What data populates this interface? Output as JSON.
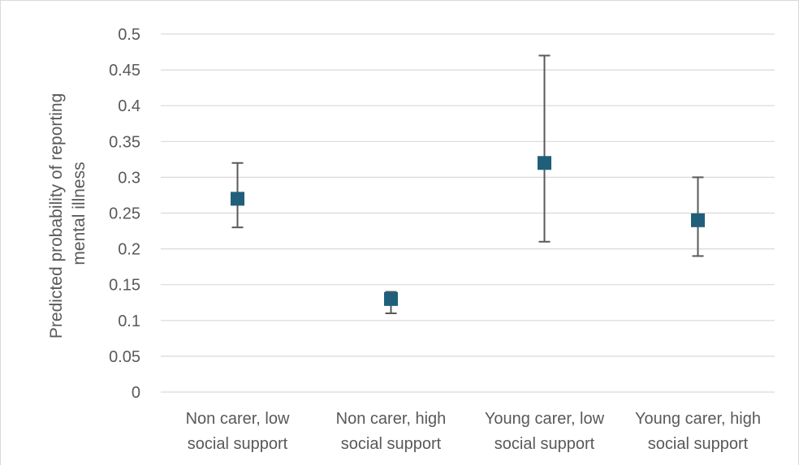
{
  "chart_data": {
    "type": "scatter",
    "title": "",
    "xlabel": "",
    "ylabel_lines": [
      "Predicted probability of reporting",
      "mental illness"
    ],
    "ylim": [
      0,
      0.5
    ],
    "y_ticks": [
      "0",
      "0.05",
      "0.1",
      "0.15",
      "0.2",
      "0.25",
      "0.3",
      "0.35",
      "0.4",
      "0.45",
      "0.5"
    ],
    "y_tick_values": [
      0,
      0.05,
      0.1,
      0.15,
      0.2,
      0.25,
      0.3,
      0.35,
      0.4,
      0.45,
      0.5
    ],
    "categories": [
      [
        "Non carer, low",
        "social support"
      ],
      [
        "Non carer, high",
        "social support"
      ],
      [
        "Young carer, low",
        "social support"
      ],
      [
        "Young carer, high",
        "social support"
      ]
    ],
    "values": [
      0.27,
      0.13,
      0.32,
      0.24
    ],
    "error_low": [
      0.23,
      0.11,
      0.21,
      0.19
    ],
    "error_high": [
      0.32,
      0.14,
      0.47,
      0.3
    ],
    "grid": true,
    "legend": "none",
    "marker": "square",
    "colors": {
      "marker": "#1f5f7a",
      "error_bar": "#595959",
      "grid": "#d9d9d9",
      "text": "#595959"
    }
  }
}
